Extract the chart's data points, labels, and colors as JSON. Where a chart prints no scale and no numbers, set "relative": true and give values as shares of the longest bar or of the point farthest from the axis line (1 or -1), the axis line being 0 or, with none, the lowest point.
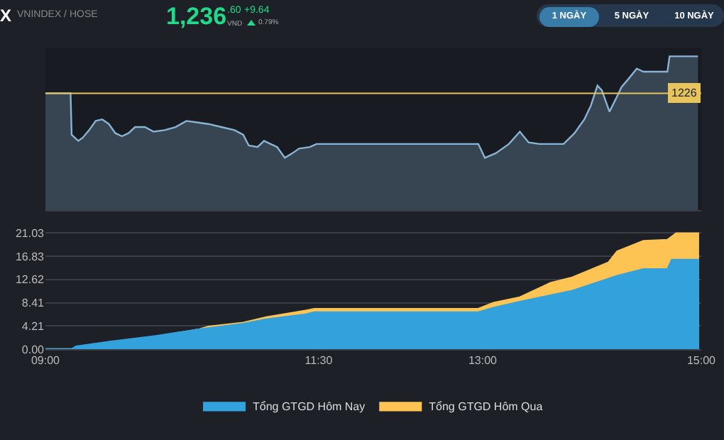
{
  "chart_data": [
    {
      "type": "area",
      "annotations": [
        "X",
        "VNINDEX / HOSE",
        "1,236",
        ".60",
        "VND",
        "+9.64",
        "0.79%",
        "1 NGÀY",
        "5 NGÀY",
        "10 NGÀY",
        {
          "text": "1226",
          "x": 15,
          "y": 0.76
        }
      ],
      "x": [
        9.0,
        9.23,
        9.24,
        9.27,
        9.3,
        9.34,
        9.4,
        9.46,
        9.52,
        9.58,
        9.64,
        9.7,
        9.76,
        9.82,
        9.91,
        9.99,
        10.09,
        10.19,
        10.29,
        10.39,
        10.49,
        10.61,
        10.73,
        10.81,
        10.86,
        10.94,
        11.0,
        11.06,
        11.12,
        11.19,
        11.26,
        11.32,
        11.42,
        11.48,
        12.96,
        13.02,
        13.12,
        13.24,
        13.34,
        13.42,
        13.52,
        13.62,
        13.74,
        13.84,
        13.93,
        13.99,
        14.05,
        14.09,
        14.16,
        14.23,
        14.27,
        14.33,
        14.41,
        14.47,
        14.69,
        14.71,
        14.97
      ],
      "values": [
        0.76,
        0.76,
        0.49,
        0.47,
        0.45,
        0.47,
        0.52,
        0.58,
        0.59,
        0.56,
        0.5,
        0.48,
        0.5,
        0.54,
        0.54,
        0.51,
        0.52,
        0.54,
        0.58,
        0.57,
        0.56,
        0.54,
        0.52,
        0.49,
        0.42,
        0.41,
        0.45,
        0.43,
        0.41,
        0.34,
        0.37,
        0.4,
        0.41,
        0.43,
        0.43,
        0.34,
        0.37,
        0.43,
        0.51,
        0.44,
        0.43,
        0.43,
        0.43,
        0.5,
        0.59,
        0.68,
        0.81,
        0.78,
        0.64,
        0.74,
        0.8,
        0.85,
        0.92,
        0.9,
        0.9,
        1,
        1
      ],
      "color": "#8ab4d4",
      "xlim": [
        9,
        15
      ],
      "relative": true,
      "ref_lines": [
        {
          "axis": "y",
          "value": 0.76,
          "color": "#e8c45a"
        }
      ]
    },
    {
      "type": "area",
      "legend": "bottom",
      "grid": "y",
      "xlim": [
        9,
        15
      ],
      "xticks": [
        {
          "value": 9,
          "label": "09:00"
        },
        {
          "value": 11.5,
          "label": "11:30"
        },
        {
          "value": 13,
          "label": "13:00"
        },
        {
          "value": 15,
          "label": "15:00"
        }
      ],
      "ylim": [
        0,
        21.6
      ],
      "yticks": [
        {
          "value": 0,
          "label": "0.00"
        },
        4.21,
        8.41,
        12.62,
        16.83,
        21.03
      ],
      "series": [
        {
          "name": "Tổng GTGD Hôm Nay",
          "color": "#33a2dc",
          "x": [
            9.0,
            9.24,
            9.28,
            9.6,
            10.01,
            10.41,
            10.81,
            11.02,
            11.38,
            11.46,
            12.96,
            13.1,
            13.34,
            13.82,
            14.23,
            14.47,
            14.69,
            14.73,
            14.98
          ],
          "values": [
            0,
            0,
            0.5,
            1.4,
            2.4,
            3.6,
            4.6,
            5.4,
            6.3,
            6.7,
            6.7,
            7.5,
            8.6,
            10.6,
            13.3,
            14.5,
            14.5,
            16.2,
            16.2
          ]
        },
        {
          "name": "Tổng GTGD Hôm Qua",
          "color": "#fdc453",
          "x": [
            9.0,
            9.24,
            9.6,
            10.01,
            10.41,
            10.49,
            10.81,
            11.02,
            11.38,
            11.46,
            12.96,
            13.1,
            13.34,
            13.62,
            13.82,
            14.15,
            14.23,
            14.47,
            14.69,
            14.77,
            14.98
          ],
          "values": [
            0,
            0,
            1.2,
            2.2,
            3.6,
            4.1,
            4.8,
            5.8,
            7.0,
            7.3,
            7.3,
            8.4,
            9.4,
            12.0,
            13.0,
            15.7,
            17.7,
            19.6,
            19.8,
            21.0,
            21.0
          ]
        }
      ]
    }
  ]
}
